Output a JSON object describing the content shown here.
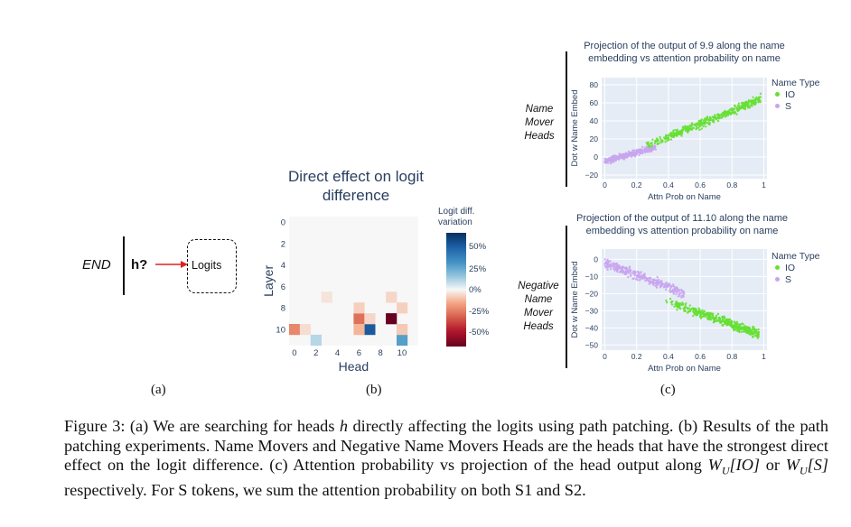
{
  "panel_a": {
    "end_label": "END",
    "h_label": "h?",
    "logits_label": "Logits",
    "sublabel": "(a)"
  },
  "panel_b": {
    "title_line1": "Direct effect on logit",
    "title_line2": "difference",
    "colorbar_title_line1": "Logit diff.",
    "colorbar_title_line2": "variation",
    "colorbar_ticks": [
      "50%",
      "25%",
      "0%",
      "-25%",
      "-50%"
    ],
    "sublabel": "(b)",
    "colors": {
      "strong_negative": "#67001f",
      "negative": "#e38a6a",
      "light_negative": "#f7c9b3",
      "positive": "#2d78b4",
      "light_positive": "#c6dcee",
      "neutral": "#f7f7f7"
    }
  },
  "panel_c": {
    "top_title_line1": "Projection of the output of 9.9 along the name",
    "top_title_line2": "embedding vs attention probability on name",
    "bottom_title_line1": "Projection of the output of 11.10 along the name",
    "bottom_title_line2": "embedding vs attention probability on  name",
    "top_side_label": [
      "Name",
      "Mover",
      "Heads"
    ],
    "bottom_side_label": [
      "Negative",
      "Name",
      "Mover",
      "Heads"
    ],
    "ylabel": "Dot w Name Embed",
    "xlabel": "Attn Prob on Name",
    "legend_title": "Name Type",
    "legend_io": "IO",
    "legend_s": "S",
    "io_color": "#66e033",
    "s_color": "#c9a5ee",
    "sublabel": "(c)"
  },
  "chart_data": [
    {
      "type": "heatmap",
      "title": "Direct effect on logit difference",
      "xlabel": "Head",
      "ylabel": "Layer",
      "x_ticks": [
        "0",
        "2",
        "4",
        "6",
        "8",
        "10"
      ],
      "y_ticks": [
        "0",
        "2",
        "4",
        "6",
        "8",
        "10"
      ],
      "rows": 12,
      "cols": 12,
      "value_range": [
        -50,
        50
      ],
      "cells": [
        {
          "layer": 9,
          "head": 9,
          "value": -55
        },
        {
          "layer": 9,
          "head": 6,
          "value": -22
        },
        {
          "layer": 10,
          "head": 7,
          "value": 40
        },
        {
          "layer": 10,
          "head": 0,
          "value": -18
        },
        {
          "layer": 11,
          "head": 10,
          "value": 22
        },
        {
          "layer": 11,
          "head": 2,
          "value": 8
        },
        {
          "layer": 10,
          "head": 6,
          "value": -10
        },
        {
          "layer": 8,
          "head": 6,
          "value": -6
        },
        {
          "layer": 8,
          "head": 10,
          "value": -6
        },
        {
          "layer": 7,
          "head": 9,
          "value": -5
        },
        {
          "layer": 7,
          "head": 3,
          "value": -3
        },
        {
          "layer": 10,
          "head": 1,
          "value": -4
        },
        {
          "layer": 10,
          "head": 10,
          "value": -7
        },
        {
          "layer": 9,
          "head": 7,
          "value": -5
        }
      ]
    },
    {
      "type": "scatter",
      "title": "Projection of the output of 9.9 along the name embedding vs attention probability on name",
      "xlabel": "Attn Prob on Name",
      "ylabel": "Dot w Name Embed",
      "x_ticks": [
        "0",
        "0.2",
        "0.4",
        "0.6",
        "0.8",
        "1"
      ],
      "y_ticks": [
        "80",
        "60",
        "40",
        "20",
        "0",
        "−20"
      ],
      "xlim": [
        -0.02,
        1.02
      ],
      "ylim": [
        -24,
        88
      ],
      "series": [
        {
          "name": "IO",
          "trend": {
            "x": [
              0.3,
              0.95
            ],
            "y": [
              15,
              62
            ]
          },
          "x_range": [
            0.25,
            0.98
          ]
        },
        {
          "name": "S",
          "trend": {
            "x": [
              0.0,
              0.3
            ],
            "y": [
              -5,
              10
            ]
          },
          "x_range": [
            0.0,
            0.32
          ]
        }
      ]
    },
    {
      "type": "scatter",
      "title": "Projection of the output of 11.10 along the name embedding vs attention probability on  name",
      "xlabel": "Attn Prob on Name",
      "ylabel": "Dot w Name Embed",
      "x_ticks": [
        "0",
        "0.2",
        "0.4",
        "0.6",
        "0.8",
        "1"
      ],
      "y_ticks": [
        "0",
        "−10",
        "−20",
        "−30",
        "−40",
        "−50"
      ],
      "xlim": [
        -0.02,
        1.02
      ],
      "ylim": [
        -53,
        6
      ],
      "series": [
        {
          "name": "IO",
          "trend": {
            "x": [
              0.4,
              0.95
            ],
            "y": [
              -25,
              -43
            ]
          },
          "x_range": [
            0.38,
            0.97
          ]
        },
        {
          "name": "S",
          "trend": {
            "x": [
              0.0,
              0.45
            ],
            "y": [
              -2,
              -18
            ]
          },
          "x_range": [
            0.0,
            0.5
          ]
        }
      ]
    }
  ],
  "caption": {
    "p1": "Figure 3: (a) We are searching for heads ",
    "h": "h",
    "p2": " directly affecting the logits using path patching.  (b) Results of the path patching experiments.  Name Movers and Negative Name Movers Heads are the heads that have the strongest direct effect on the logit difference.  (c) Attention probability vs projection of the head output along ",
    "wio": "W",
    "wio_sub": "U",
    "wio_arg": "[IO]",
    "or": " or ",
    "ws": "W",
    "ws_sub": "U",
    "ws_arg": "[S]",
    "p3": " respectively.  For S tokens, we sum the attention probability on both S1 and S2."
  }
}
